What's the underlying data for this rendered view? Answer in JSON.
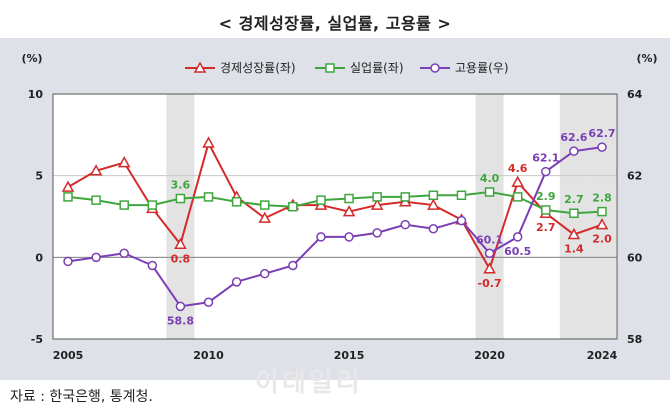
{
  "title": "< 경제성장률,  실업률,  고용률 >",
  "footer": "자료 : 한국은행, 통계청.",
  "watermark": "이데일리",
  "chart_data": {
    "type": "line",
    "left_axis_unit": "(%)",
    "right_axis_unit": "(%)",
    "ylim_left": [
      -5,
      10
    ],
    "ylim_right": [
      58,
      64
    ],
    "left_ticks": [
      10,
      5,
      0,
      -5
    ],
    "right_ticks": [
      64,
      62,
      60,
      58
    ],
    "x": [
      2005,
      2006,
      2007,
      2008,
      2009,
      2010,
      2011,
      2012,
      2013,
      2014,
      2015,
      2016,
      2017,
      2018,
      2019,
      2020,
      2021,
      2022,
      2023,
      2024
    ],
    "x_tick_labels": [
      2005,
      2010,
      2015,
      2020,
      2024
    ],
    "shaded_years": [
      2009,
      2020,
      2023,
      2024
    ],
    "series": [
      {
        "name": "경제성장률(좌)",
        "axis": "left",
        "color": "#d42a2a",
        "marker": "triangle",
        "values": [
          4.3,
          5.3,
          5.8,
          3.0,
          0.8,
          7.0,
          3.7,
          2.4,
          3.2,
          3.2,
          2.8,
          3.2,
          3.4,
          3.2,
          2.3,
          -0.7,
          4.6,
          2.7,
          1.4,
          2.0
        ]
      },
      {
        "name": "실업률(좌)",
        "axis": "left",
        "color": "#3fa63f",
        "marker": "square",
        "values": [
          3.7,
          3.5,
          3.2,
          3.2,
          3.6,
          3.7,
          3.4,
          3.2,
          3.1,
          3.5,
          3.6,
          3.7,
          3.7,
          3.8,
          3.8,
          4.0,
          3.7,
          2.9,
          2.7,
          2.8
        ]
      },
      {
        "name": "고용률(우)",
        "axis": "right",
        "color": "#7b3fb5",
        "marker": "circle",
        "values": [
          59.9,
          60.0,
          60.1,
          59.8,
          58.8,
          58.9,
          59.4,
          59.6,
          59.8,
          60.5,
          60.5,
          60.6,
          60.8,
          60.7,
          60.9,
          60.1,
          60.5,
          62.1,
          62.6,
          62.7
        ]
      }
    ],
    "annotations": [
      {
        "series": 0,
        "index": 4,
        "text": "0.8",
        "pos": "below"
      },
      {
        "series": 0,
        "index": 15,
        "text": "-0.7",
        "pos": "below"
      },
      {
        "series": 0,
        "index": 16,
        "text": "4.6",
        "pos": "above"
      },
      {
        "series": 0,
        "index": 17,
        "text": "2.7",
        "pos": "below"
      },
      {
        "series": 0,
        "index": 18,
        "text": "1.4",
        "pos": "below"
      },
      {
        "series": 0,
        "index": 19,
        "text": "2.0",
        "pos": "below"
      },
      {
        "series": 1,
        "index": 4,
        "text": "3.6",
        "pos": "above"
      },
      {
        "series": 1,
        "index": 15,
        "text": "4.0",
        "pos": "above"
      },
      {
        "series": 1,
        "index": 17,
        "text": "2.9",
        "pos": "above"
      },
      {
        "series": 1,
        "index": 18,
        "text": "2.7",
        "pos": "above"
      },
      {
        "series": 1,
        "index": 19,
        "text": "2.8",
        "pos": "above"
      },
      {
        "series": 2,
        "index": 4,
        "text": "58.8",
        "pos": "below"
      },
      {
        "series": 2,
        "index": 15,
        "text": "60.1",
        "pos": "above"
      },
      {
        "series": 2,
        "index": 16,
        "text": "60.5",
        "pos": "below"
      },
      {
        "series": 2,
        "index": 17,
        "text": "62.1",
        "pos": "above"
      },
      {
        "series": 2,
        "index": 18,
        "text": "62.6",
        "pos": "above"
      },
      {
        "series": 2,
        "index": 19,
        "text": "62.7",
        "pos": "above"
      }
    ]
  }
}
